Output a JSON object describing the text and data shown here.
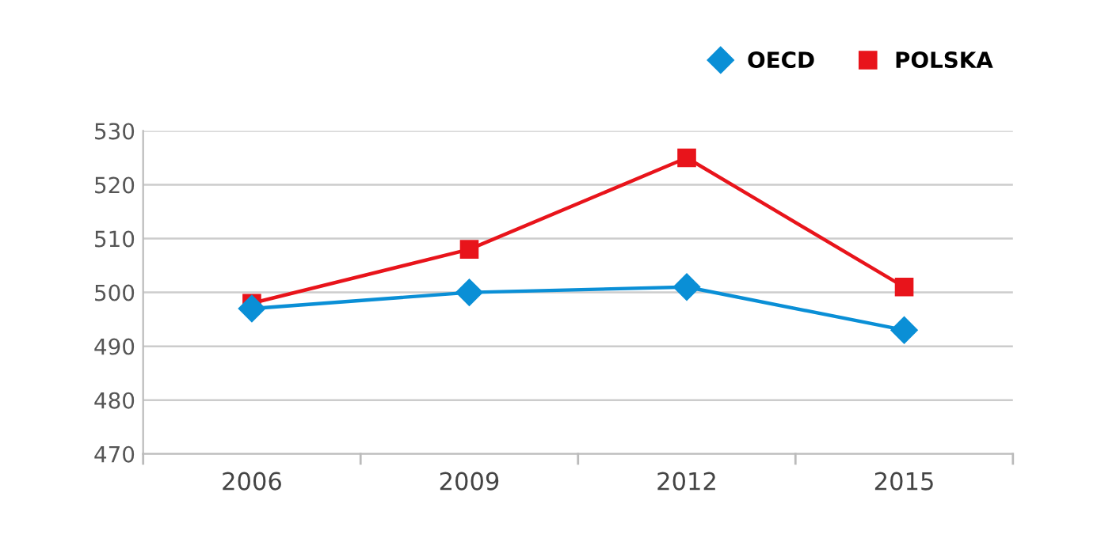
{
  "chart_data": {
    "type": "line",
    "categories": [
      "2006",
      "2009",
      "2012",
      "2015"
    ],
    "series": [
      {
        "name": "OECD",
        "color": "#0a8fd6",
        "marker": "diamond",
        "values": [
          497,
          500,
          501,
          493
        ]
      },
      {
        "name": "POLSKA",
        "color": "#e8141b",
        "marker": "square",
        "values": [
          498,
          508,
          525,
          501
        ]
      }
    ],
    "ylim": [
      470,
      530
    ],
    "yticks": [
      470,
      480,
      490,
      500,
      510,
      520,
      530
    ],
    "grid": "y",
    "legend": "top right",
    "line_style": "solid"
  }
}
